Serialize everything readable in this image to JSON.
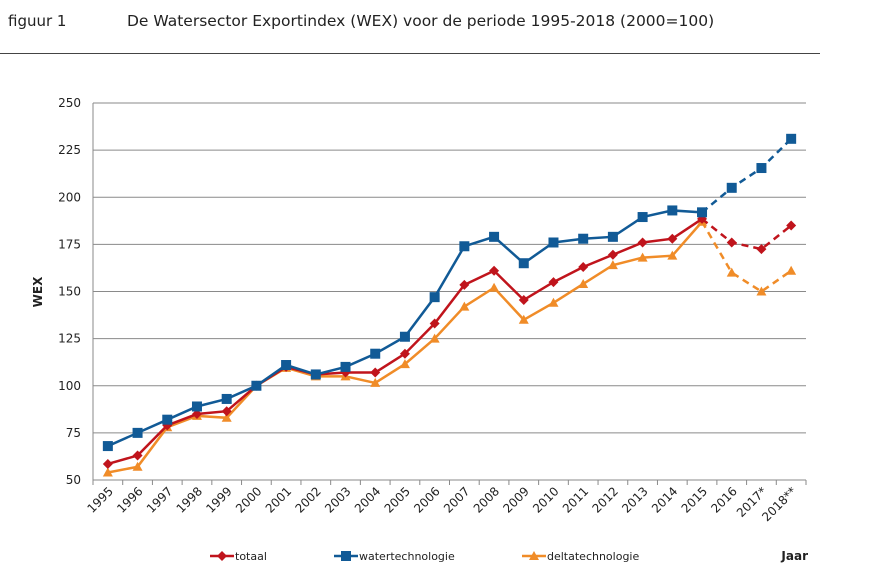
{
  "header": {
    "figure_label": "figuur 1",
    "title": "De Watersector Exportindex (WEX) voor de periode 1995-2018 (2000=100)"
  },
  "chart_data": {
    "type": "line",
    "title": "De Watersector Exportindex (WEX) voor de periode 1995-2018 (2000=100)",
    "xlabel": "Jaar",
    "ylabel": "WEX",
    "ylim": [
      50,
      250
    ],
    "yticks": [
      50,
      75,
      100,
      125,
      150,
      175,
      200,
      225,
      250
    ],
    "grid": "horizontal",
    "legend_position": "bottom",
    "categories": [
      "1995",
      "1996",
      "1997",
      "1998",
      "1999",
      "2000",
      "2001",
      "2002",
      "2003",
      "2004",
      "2005",
      "2006",
      "2007",
      "2008",
      "2009",
      "2010",
      "2011",
      "2012",
      "2013",
      "2014",
      "2015",
      "2016",
      "2017*",
      "2018**"
    ],
    "dashed_from_index": 21,
    "series": [
      {
        "name": "totaal",
        "color": "#c0141c",
        "marker": "diamond",
        "values": [
          58.5,
          63,
          79,
          85,
          86.5,
          100,
          110,
          106,
          107,
          107,
          117,
          133,
          153.5,
          161,
          145.5,
          155,
          163,
          169.5,
          176,
          178,
          188.5,
          176,
          172.5,
          185
        ]
      },
      {
        "name": "watertechnologie",
        "color": "#115a96",
        "marker": "square",
        "values": [
          68,
          75,
          82,
          89,
          93,
          100,
          111,
          106,
          110,
          117,
          126,
          147,
          174,
          179,
          165,
          176,
          178,
          179,
          189.5,
          193,
          192,
          205,
          215.5,
          231
        ]
      },
      {
        "name": "deltatechnologie",
        "color": "#f08c28",
        "marker": "triangle",
        "values": [
          54,
          57,
          78,
          84,
          83,
          100,
          109.5,
          105,
          105,
          101.5,
          111.5,
          125,
          142,
          152,
          135,
          144,
          154,
          164,
          168,
          169,
          187,
          160,
          150,
          161
        ]
      }
    ]
  }
}
